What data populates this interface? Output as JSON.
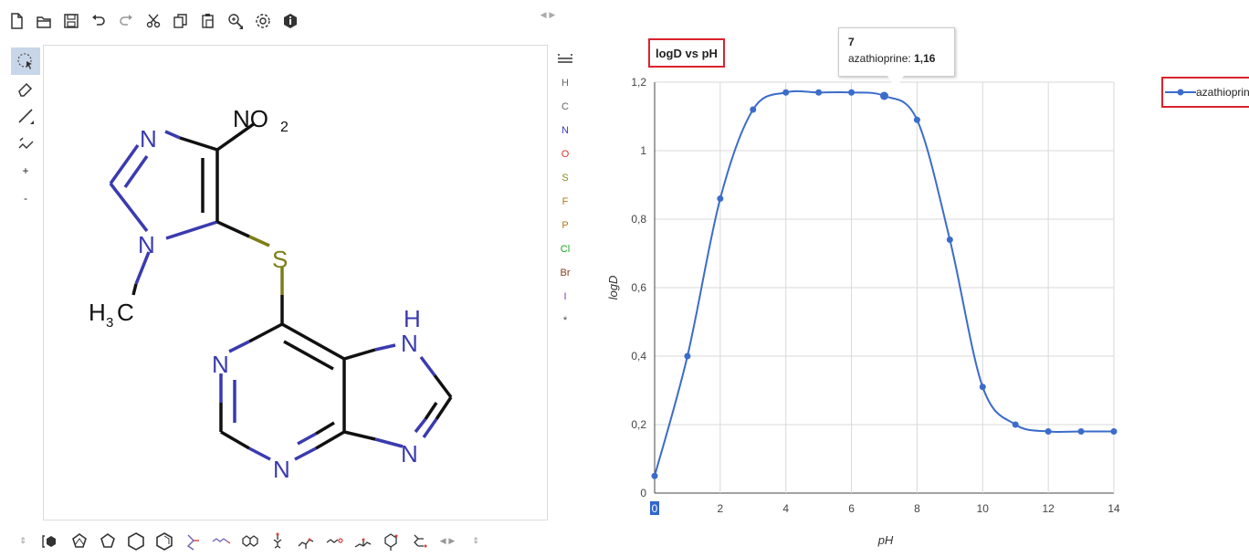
{
  "editor": {
    "toolbar_icons": [
      "new-document-icon",
      "open-folder-icon",
      "save-icon",
      "undo-icon",
      "redo-icon",
      "cut-icon",
      "copy-icon",
      "paste-icon",
      "zoom-icon",
      "settings-icon",
      "info-icon"
    ],
    "left_tools": {
      "select": "select-lasso-icon",
      "erase": "eraser-icon",
      "bond": "single-bond-icon",
      "chain": "chain-icon",
      "charge_plus": "+",
      "charge_minus": "-"
    },
    "atom_labels": {
      "nitro": "NO",
      "nitro_sub": "2",
      "sulfur": "S",
      "n_ring1_top": "N",
      "n_ring1_bottom": "N",
      "methyl": "H",
      "methyl_sub": "3",
      "methyl_c": "C",
      "n_pyr_left": "N",
      "n_pyr_bottom": "N",
      "nh_h": "H",
      "nh_n": "N",
      "n_imid_bottom": "N"
    },
    "atom_panel": [
      {
        "label": "H",
        "color": "#666666"
      },
      {
        "label": "C",
        "color": "#666666"
      },
      {
        "label": "N",
        "color": "#3a3ab0"
      },
      {
        "label": "O",
        "color": "#e0302a"
      },
      {
        "label": "S",
        "color": "#8a8a1e"
      },
      {
        "label": "F",
        "color": "#b07a1a"
      },
      {
        "label": "P",
        "color": "#b07a1a"
      },
      {
        "label": "Cl",
        "color": "#1aa61a"
      },
      {
        "label": "Br",
        "color": "#8a3a1a"
      },
      {
        "label": "I",
        "color": "#8a3ab0"
      },
      {
        "label": "*",
        "color": "#444444"
      }
    ],
    "bottom_tools": [
      "updown-arrow-icon",
      "benzene-bracket-icon",
      "cyclopentadiene-icon",
      "cyclopentane-icon",
      "cyclohexane-icon",
      "cyclohexadiene-icon",
      "template-1-icon",
      "template-2-icon",
      "template-3-icon",
      "template-4-icon",
      "template-5-icon",
      "template-6-icon",
      "template-7-icon",
      "template-8-icon",
      "template-9-icon"
    ],
    "colors": {
      "bond": "#111111",
      "nitrogen": "#3a3ab0",
      "sulfur": "#7d7d18"
    }
  },
  "chart_data": {
    "type": "line",
    "title": "logD vs pH",
    "xlabel": "pH",
    "ylabel": "logD",
    "x": [
      0,
      1,
      2,
      3,
      4,
      5,
      6,
      7,
      8,
      9,
      10,
      11,
      12,
      13,
      14
    ],
    "series": [
      {
        "name": "azathioprine",
        "color": "#3b6cc9",
        "values": [
          0.05,
          0.4,
          0.86,
          1.12,
          1.17,
          1.17,
          1.17,
          1.16,
          1.09,
          0.74,
          0.31,
          0.2,
          0.18,
          0.18,
          0.18
        ]
      }
    ],
    "xlim": [
      0,
      14
    ],
    "ylim": [
      0,
      1.2
    ],
    "x_ticks": [
      "0",
      "2",
      "4",
      "6",
      "8",
      "10",
      "12",
      "14"
    ],
    "y_ticks": [
      "0",
      "0,2",
      "0,4",
      "0,6",
      "0,8",
      "1",
      "1,2"
    ],
    "grid": true,
    "legend_position": "right"
  },
  "tooltip": {
    "x": "7",
    "series": "azathioprine:",
    "value": "1,16"
  }
}
